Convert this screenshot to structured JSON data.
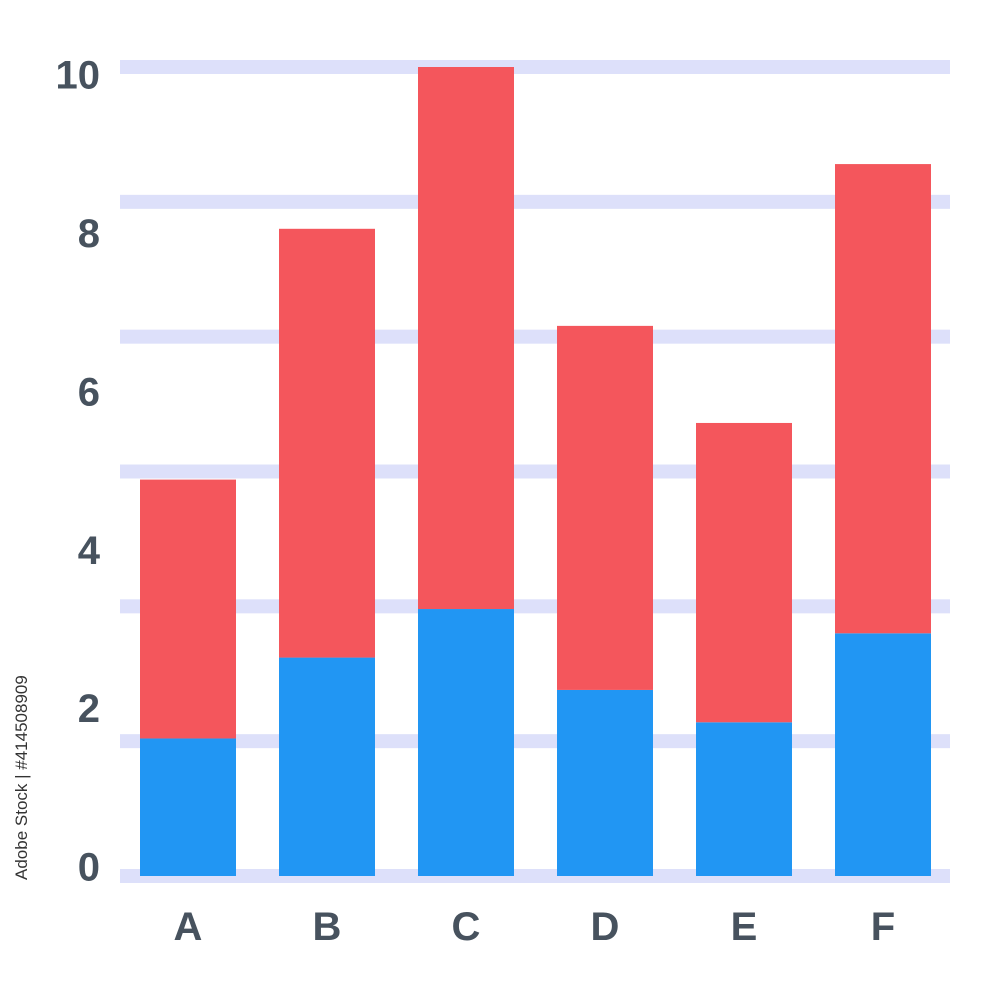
{
  "chart_data": {
    "type": "bar",
    "stacked": true,
    "categories": [
      "A",
      "B",
      "C",
      "D",
      "E",
      "F"
    ],
    "series": [
      {
        "color": "#2196f3",
        "values": [
          1.7,
          2.7,
          3.3,
          2.3,
          1.9,
          3.0
        ]
      },
      {
        "color": "#f4565c",
        "values": [
          3.2,
          5.3,
          6.7,
          4.5,
          3.7,
          5.8
        ]
      }
    ],
    "yticks": [
      "0",
      "2",
      "4",
      "6",
      "8",
      "10"
    ],
    "ylim": [
      0,
      10
    ],
    "grid": true,
    "grid_color": "#dde0fa",
    "label_color": "#47525e"
  },
  "watermark": "Adobe Stock | #414508909"
}
